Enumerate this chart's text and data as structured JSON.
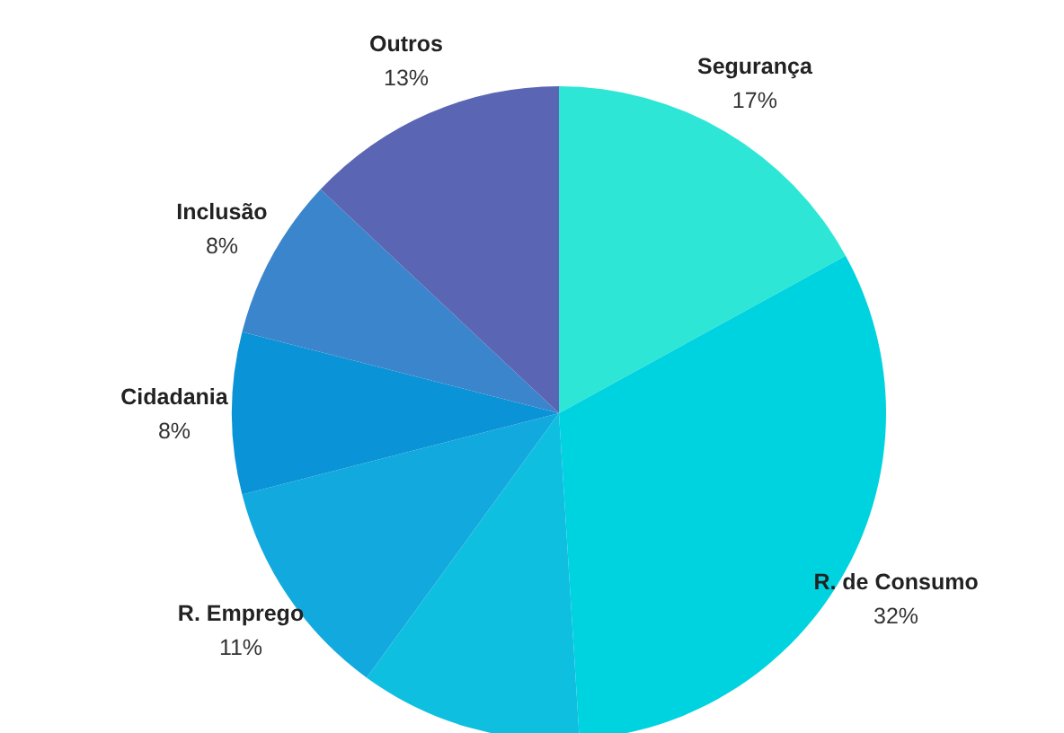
{
  "chart_data": {
    "type": "pie",
    "categories": [
      "Segurança",
      "R. de Consumo",
      null,
      "R. Emprego",
      "Cidadania",
      "Inclusão",
      "Outros"
    ],
    "values": [
      17,
      32,
      11,
      11,
      8,
      8,
      13
    ],
    "value_labels": [
      "17%",
      "32%",
      null,
      "11%",
      "8%",
      "8%",
      "13%"
    ],
    "colors": [
      "#2ee6d6",
      "#00d3e0",
      "#0fbfe0",
      "#12aade",
      "#0a93d6",
      "#3a85cc",
      "#5a66b4"
    ]
  }
}
